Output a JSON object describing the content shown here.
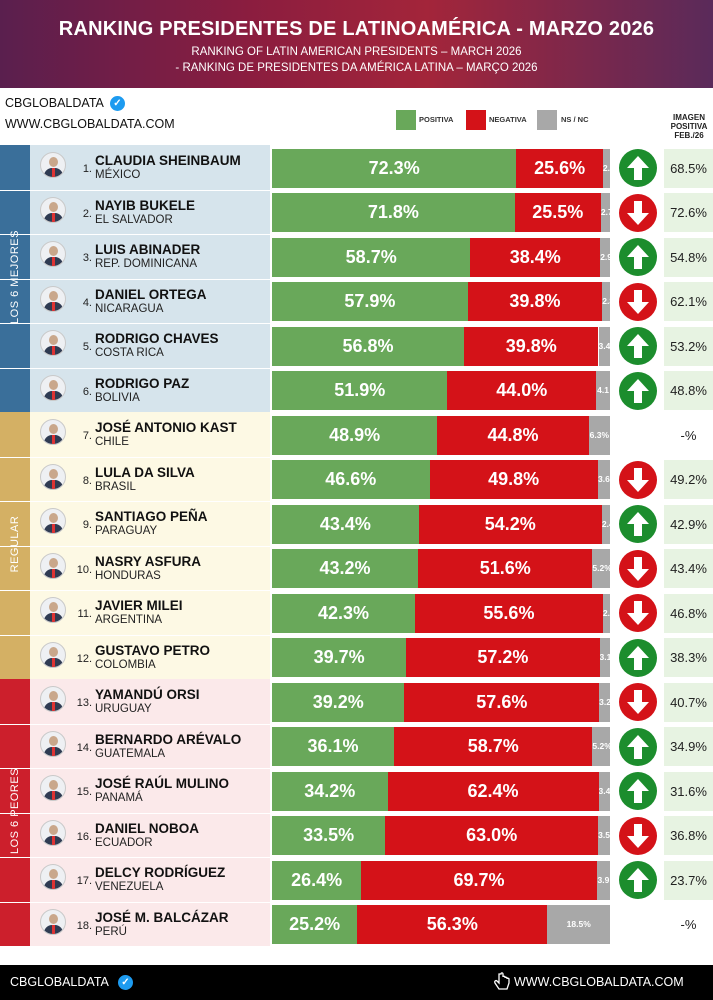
{
  "header": {
    "title": "RANKING PRESIDENTES DE LATINOAMÉRICA - MARZO 2026",
    "subtitle_en": "RANKING OF LATIN AMERICAN PRESIDENTS – MARCH 2026",
    "subtitle_pt": "- RANKING DE PRESIDENTES DA AMÉRICA LATINA – MARÇO 2026"
  },
  "brand": {
    "name": "CBGLOBALDATA",
    "url": "WWW.CBGLOBALDATA.COM"
  },
  "legend": {
    "positive": "POSITIVA",
    "negative": "NEGATIVA",
    "nsnc": "NS / NC"
  },
  "image_column_header": [
    "IMAGEN",
    "POSITIVA",
    "FEB./26"
  ],
  "groups": [
    {
      "label": "LOS 6 MEJORES",
      "color": "#3a6f9a",
      "bg": "#d6e4ec"
    },
    {
      "label": "REGULAR",
      "color": "#d4b064",
      "bg": "#fdf9e4"
    },
    {
      "label": "LOS 6 PEORES",
      "color": "#cc1f2c",
      "bg": "#fbe9ea"
    }
  ],
  "colors": {
    "positive": "#69a85a",
    "negative": "#d41218",
    "nsnc": "#a8a8a8",
    "arrow_up": "#1c8d2d",
    "arrow_down": "#d41218"
  },
  "chart_data": {
    "type": "bar",
    "stacked": true,
    "orientation": "horizontal",
    "series_names": [
      "POSITIVA",
      "NEGATIVA",
      "NS / NC"
    ],
    "rows": [
      {
        "rank": "1.",
        "name": "CLAUDIA SHEINBAUM",
        "country": "MÉXICO",
        "positive": 72.3,
        "negative": 25.6,
        "nsnc": 2.1,
        "pos_label": "72.3%",
        "neg_label": "25.6%",
        "nsnc_label": "2.1",
        "trend": "up",
        "feb": "68.5%"
      },
      {
        "rank": "2.",
        "name": "NAYIB BUKELE",
        "country": "EL SALVADOR",
        "positive": 71.8,
        "negative": 25.5,
        "nsnc": 2.7,
        "pos_label": "71.8%",
        "neg_label": "25.5%",
        "nsnc_label": "2.7",
        "trend": "down",
        "feb": "72.6%"
      },
      {
        "rank": "3.",
        "name": "LUIS ABINADER",
        "country": "REP. DOMINICANA",
        "positive": 58.7,
        "negative": 38.4,
        "nsnc": 2.9,
        "pos_label": "58.7%",
        "neg_label": "38.4%",
        "nsnc_label": "2.9",
        "trend": "up",
        "feb": "54.8%"
      },
      {
        "rank": "4.",
        "name": "DANIEL ORTEGA",
        "country": "NICARAGUA",
        "positive": 57.9,
        "negative": 39.8,
        "nsnc": 2.3,
        "pos_label": "57.9%",
        "neg_label": "39.8%",
        "nsnc_label": "2.3",
        "trend": "down",
        "feb": "62.1%"
      },
      {
        "rank": "5.",
        "name": "RODRIGO CHAVES",
        "country": "COSTA RICA",
        "positive": 56.8,
        "negative": 39.8,
        "nsnc": 3.4,
        "pos_label": "56.8%",
        "neg_label": "39.8%",
        "nsnc_label": "3.4",
        "trend": "up",
        "feb": "53.2%"
      },
      {
        "rank": "6.",
        "name": "RODRIGO PAZ",
        "country": "BOLIVIA",
        "positive": 51.9,
        "negative": 44.0,
        "nsnc": 4.1,
        "pos_label": "51.9%",
        "neg_label": "44.0%",
        "nsnc_label": "4.1",
        "trend": "up",
        "feb": "48.8%"
      },
      {
        "rank": "7.",
        "name": "JOSÉ ANTONIO KAST",
        "country": "CHILE",
        "positive": 48.9,
        "negative": 44.8,
        "nsnc": 6.3,
        "pos_label": "48.9%",
        "neg_label": "44.8%",
        "nsnc_label": "6.3%",
        "trend": "",
        "feb": "-%"
      },
      {
        "rank": "8.",
        "name": "LULA DA SILVA",
        "country": "BRASIL",
        "positive": 46.6,
        "negative": 49.8,
        "nsnc": 3.6,
        "pos_label": "46.6%",
        "neg_label": "49.8%",
        "nsnc_label": "3.6",
        "trend": "down",
        "feb": "49.2%"
      },
      {
        "rank": "9.",
        "name": "SANTIAGO PEÑA",
        "country": "PARAGUAY",
        "positive": 43.4,
        "negative": 54.2,
        "nsnc": 2.4,
        "pos_label": "43.4%",
        "neg_label": "54.2%",
        "nsnc_label": "2.4",
        "trend": "up",
        "feb": "42.9%"
      },
      {
        "rank": "10.",
        "name": "NASRY ASFURA",
        "country": "HONDURAS",
        "positive": 43.2,
        "negative": 51.6,
        "nsnc": 5.2,
        "pos_label": "43.2%",
        "neg_label": "51.6%",
        "nsnc_label": "5.2%",
        "trend": "down",
        "feb": "43.4%"
      },
      {
        "rank": "11.",
        "name": "JAVIER MILEI",
        "country": "ARGENTINA",
        "positive": 42.3,
        "negative": 55.6,
        "nsnc": 2.1,
        "pos_label": "42.3%",
        "neg_label": "55.6%",
        "nsnc_label": "2.1",
        "trend": "down",
        "feb": "46.8%"
      },
      {
        "rank": "12.",
        "name": "GUSTAVO PETRO",
        "country": "COLOMBIA",
        "positive": 39.7,
        "negative": 57.2,
        "nsnc": 3.1,
        "pos_label": "39.7%",
        "neg_label": "57.2%",
        "nsnc_label": "3.1",
        "trend": "up",
        "feb": "38.3%"
      },
      {
        "rank": "13.",
        "name": "YAMANDÚ ORSI",
        "country": "URUGUAY",
        "positive": 39.2,
        "negative": 57.6,
        "nsnc": 3.2,
        "pos_label": "39.2%",
        "neg_label": "57.6%",
        "nsnc_label": "3.2",
        "trend": "down",
        "feb": "40.7%"
      },
      {
        "rank": "14.",
        "name": "BERNARDO ARÉVALO",
        "country": "GUATEMALA",
        "positive": 36.1,
        "negative": 58.7,
        "nsnc": 5.2,
        "pos_label": "36.1%",
        "neg_label": "58.7%",
        "nsnc_label": "5.2%",
        "trend": "up",
        "feb": "34.9%"
      },
      {
        "rank": "15.",
        "name": "JOSÉ RAÚL MULINO",
        "country": "PANAMÁ",
        "positive": 34.2,
        "negative": 62.4,
        "nsnc": 3.4,
        "pos_label": "34.2%",
        "neg_label": "62.4%",
        "nsnc_label": "3.4",
        "trend": "up",
        "feb": "31.6%"
      },
      {
        "rank": "16.",
        "name": "DANIEL NOBOA",
        "country": "ECUADOR",
        "positive": 33.5,
        "negative": 63.0,
        "nsnc": 3.5,
        "pos_label": "33.5%",
        "neg_label": "63.0%",
        "nsnc_label": "3.5",
        "trend": "down",
        "feb": "36.8%"
      },
      {
        "rank": "17.",
        "name": "DELCY RODRÍGUEZ",
        "country": "VENEZUELA",
        "positive": 26.4,
        "negative": 69.7,
        "nsnc": 3.9,
        "pos_label": "26.4%",
        "neg_label": "69.7%",
        "nsnc_label": "3.9",
        "trend": "up",
        "feb": "23.7%"
      },
      {
        "rank": "18.",
        "name": "JOSÉ M. BALCÁZAR",
        "country": "PERÚ",
        "positive": 25.2,
        "negative": 56.3,
        "nsnc": 18.5,
        "pos_label": "25.2%",
        "neg_label": "56.3%",
        "nsnc_label": "18.5%",
        "trend": "",
        "feb": "-%"
      }
    ]
  }
}
